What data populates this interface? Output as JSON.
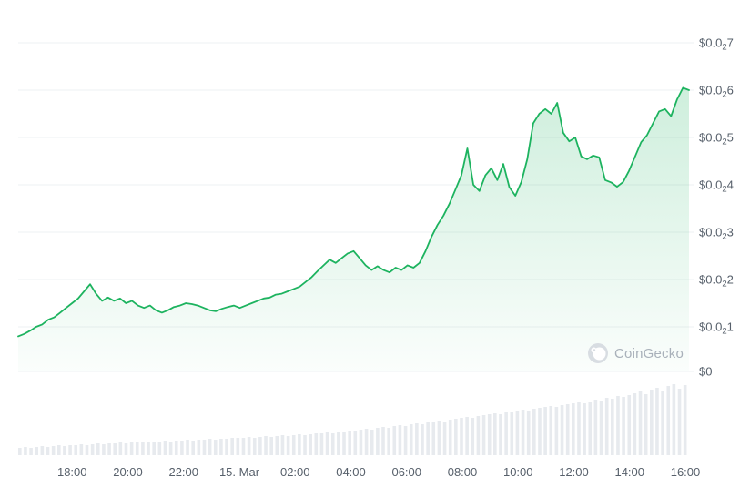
{
  "watermark": {
    "text": "CoinGecko"
  },
  "chart_data": {
    "type": "area",
    "title": "24h cryptocurrency price chart with volume",
    "line_color": "#1db35f",
    "fill_top": "rgba(29,179,95,0.22)",
    "fill_bottom": "rgba(29,179,95,0.02)",
    "volume_color": "#e7eaee",
    "grid_color": "#eef0f3",
    "axis_label_color": "#57606b",
    "x_tick_labels": [
      "18:00",
      "20:00",
      "22:00",
      "15. Mar",
      "02:00",
      "04:00",
      "06:00",
      "08:00",
      "10:00",
      "12:00",
      "14:00",
      "16:00"
    ],
    "y_ticks": [
      {
        "pre": "$0.0",
        "sub": "2",
        "post": "7",
        "value": 0.0027
      },
      {
        "pre": "$0.0",
        "sub": "2",
        "post": "6",
        "value": 0.0026
      },
      {
        "pre": "$0.0",
        "sub": "2",
        "post": "5",
        "value": 0.0025
      },
      {
        "pre": "$0.0",
        "sub": "2",
        "post": "4",
        "value": 0.0024
      },
      {
        "pre": "$0.0",
        "sub": "2",
        "post": "3",
        "value": 0.0023
      },
      {
        "pre": "$0.0",
        "sub": "2",
        "post": "2",
        "value": 0.0022
      },
      {
        "pre": "$0.0",
        "sub": "2",
        "post": "1",
        "value": 0.0021
      },
      {
        "pre": "$0",
        "sub": "",
        "post": "",
        "value": 0
      }
    ],
    "price_series": [
      0.00208,
      0.002085,
      0.002092,
      0.0021,
      0.002105,
      0.002115,
      0.00212,
      0.00213,
      0.00214,
      0.00215,
      0.00216,
      0.002175,
      0.00219,
      0.00217,
      0.002155,
      0.002162,
      0.002155,
      0.00216,
      0.00215,
      0.002155,
      0.002145,
      0.00214,
      0.002145,
      0.002135,
      0.00213,
      0.002135,
      0.002142,
      0.002145,
      0.00215,
      0.002148,
      0.002145,
      0.00214,
      0.002135,
      0.002133,
      0.002138,
      0.002142,
      0.002145,
      0.00214,
      0.002145,
      0.00215,
      0.002155,
      0.00216,
      0.002162,
      0.002168,
      0.00217,
      0.002175,
      0.00218,
      0.002185,
      0.002195,
      0.002205,
      0.002218,
      0.00223,
      0.002242,
      0.002235,
      0.002245,
      0.002255,
      0.00226,
      0.002245,
      0.00223,
      0.00222,
      0.002228,
      0.00222,
      0.002215,
      0.002225,
      0.00222,
      0.00223,
      0.002225,
      0.002235,
      0.00226,
      0.00229,
      0.002315,
      0.002335,
      0.00236,
      0.00239,
      0.00242,
      0.002477,
      0.0024,
      0.002387,
      0.00242,
      0.002435,
      0.00241,
      0.002444,
      0.002395,
      0.002377,
      0.002406,
      0.002454,
      0.00253,
      0.00255,
      0.00256,
      0.00255,
      0.002573,
      0.00251,
      0.002492,
      0.0025,
      0.00246,
      0.002454,
      0.002462,
      0.002458,
      0.00241,
      0.002405,
      0.002396,
      0.002406,
      0.00243,
      0.00246,
      0.00249,
      0.002505,
      0.00253,
      0.002555,
      0.00256,
      0.002545,
      0.00258,
      0.002605,
      0.0026
    ],
    "volume_series": [
      8,
      9,
      8,
      9,
      10,
      9,
      10,
      11,
      10,
      11,
      11,
      12,
      11,
      12,
      13,
      12,
      13,
      13,
      14,
      13,
      14,
      14,
      15,
      14,
      15,
      15,
      16,
      15,
      16,
      16,
      17,
      16,
      17,
      17,
      18,
      17,
      18,
      18,
      19,
      19,
      19,
      20,
      19,
      20,
      21,
      20,
      21,
      22,
      21,
      22,
      23,
      22,
      23,
      24,
      24,
      25,
      24,
      26,
      25,
      27,
      27,
      28,
      29,
      28,
      30,
      31,
      30,
      32,
      33,
      32,
      34,
      35,
      34,
      36,
      37,
      38,
      37,
      39,
      40,
      41,
      42,
      41,
      43,
      44,
      45,
      46,
      45,
      47,
      48,
      49,
      50,
      49,
      51,
      52,
      53,
      54,
      53,
      55,
      56,
      57,
      58,
      57,
      59,
      61,
      60,
      63,
      62,
      65,
      64,
      66,
      68,
      70,
      67,
      72,
      74,
      70,
      76,
      78,
      73,
      77
    ]
  }
}
